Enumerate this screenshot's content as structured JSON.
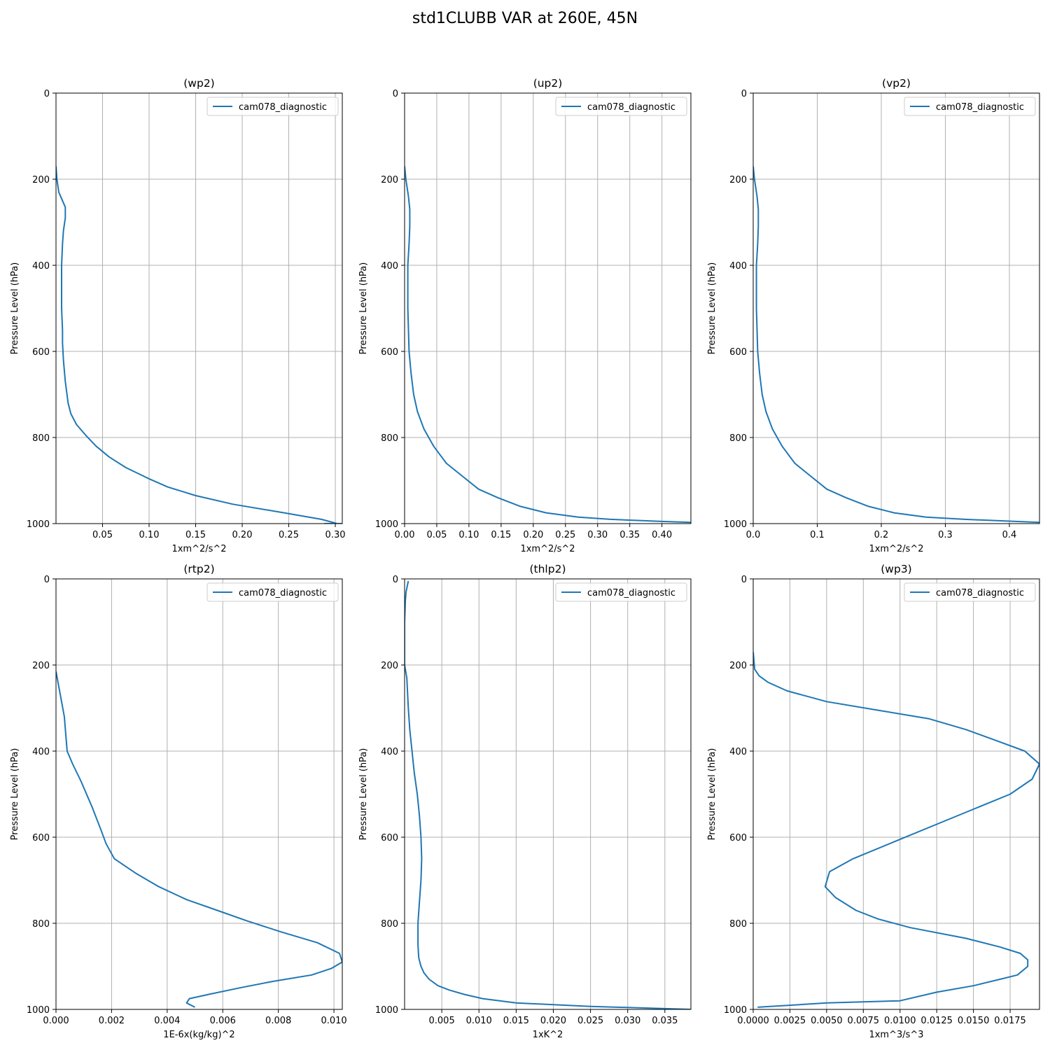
{
  "figure": {
    "title": "std1CLUBB VAR at 260E, 45N",
    "line_color": "#1f77b4",
    "grid_color": "#b0b0b0"
  },
  "chart_data": [
    {
      "type": "line",
      "title": "(wp2)",
      "xlabel": "1xm^2/s^2",
      "ylabel": "Pressure Level (hPa)",
      "xlim": [
        0.0,
        0.3075
      ],
      "ylim": [
        1000,
        0
      ],
      "xticks": [
        0.05,
        0.1,
        0.15,
        0.2,
        0.25,
        0.3
      ],
      "xtick_labels": [
        "0.05",
        "0.10",
        "0.15",
        "0.20",
        "0.25",
        "0.30"
      ],
      "yticks": [
        0,
        200,
        400,
        600,
        800,
        1000
      ],
      "ytick_labels": [
        "0",
        "200",
        "400",
        "600",
        "800",
        "1000"
      ],
      "grid": true,
      "legend": "top-right",
      "series": [
        {
          "name": "cam078_diagnostic",
          "x": [
            0.0,
            0.001,
            0.003,
            0.007,
            0.01,
            0.01,
            0.008,
            0.007,
            0.006,
            0.006,
            0.006,
            0.007,
            0.007,
            0.008,
            0.01,
            0.013,
            0.016,
            0.022,
            0.032,
            0.043,
            0.057,
            0.075,
            0.099,
            0.12,
            0.15,
            0.19,
            0.245,
            0.285,
            0.302,
            0.3075,
            0.288
          ],
          "y": [
            170,
            200,
            230,
            250,
            265,
            290,
            320,
            350,
            400,
            450,
            500,
            550,
            580,
            620,
            670,
            720,
            745,
            770,
            795,
            820,
            845,
            870,
            895,
            915,
            935,
            955,
            975,
            990,
            1000,
            1000,
            1000
          ]
        }
      ]
    },
    {
      "type": "line",
      "title": "(up2)",
      "xlabel": "1xm^2/s^2",
      "ylabel": "Pressure Level (hPa)",
      "xlim": [
        0.0,
        0.445
      ],
      "ylim": [
        1000,
        0
      ],
      "xticks": [
        0.0,
        0.05,
        0.1,
        0.15,
        0.2,
        0.25,
        0.3,
        0.35,
        0.4
      ],
      "xtick_labels": [
        "0.00",
        "0.05",
        "0.10",
        "0.15",
        "0.20",
        "0.25",
        "0.30",
        "0.35",
        "0.40"
      ],
      "yticks": [
        0,
        200,
        400,
        600,
        800,
        1000
      ],
      "ytick_labels": [
        "0",
        "200",
        "400",
        "600",
        "800",
        "1000"
      ],
      "grid": true,
      "legend": "top-right",
      "series": [
        {
          "name": "cam078_diagnostic",
          "x": [
            0.0,
            0.002,
            0.006,
            0.008,
            0.008,
            0.007,
            0.005,
            0.005,
            0.005,
            0.006,
            0.007,
            0.01,
            0.014,
            0.02,
            0.03,
            0.045,
            0.065,
            0.09,
            0.115,
            0.145,
            0.18,
            0.22,
            0.27,
            0.32,
            0.4,
            0.445
          ],
          "y": [
            170,
            200,
            240,
            270,
            310,
            350,
            400,
            450,
            500,
            550,
            600,
            650,
            700,
            740,
            780,
            820,
            860,
            890,
            920,
            940,
            960,
            975,
            985,
            990,
            995,
            997
          ]
        }
      ]
    },
    {
      "type": "line",
      "title": "(vp2)",
      "xlabel": "1xm^2/s^2",
      "ylabel": "Pressure Level (hPa)",
      "xlim": [
        0.0,
        0.447
      ],
      "ylim": [
        1000,
        0
      ],
      "xticks": [
        0.0,
        0.1,
        0.2,
        0.3,
        0.4
      ],
      "xtick_labels": [
        "0.0",
        "0.1",
        "0.2",
        "0.3",
        "0.4"
      ],
      "yticks": [
        0,
        200,
        400,
        600,
        800,
        1000
      ],
      "ytick_labels": [
        "0",
        "200",
        "400",
        "600",
        "800",
        "1000"
      ],
      "grid": true,
      "legend": "top-right",
      "series": [
        {
          "name": "cam078_diagnostic",
          "x": [
            0.0,
            0.002,
            0.006,
            0.008,
            0.008,
            0.007,
            0.005,
            0.005,
            0.005,
            0.006,
            0.007,
            0.01,
            0.014,
            0.02,
            0.03,
            0.045,
            0.065,
            0.09,
            0.115,
            0.145,
            0.18,
            0.22,
            0.27,
            0.33,
            0.41,
            0.447
          ],
          "y": [
            170,
            200,
            240,
            270,
            310,
            350,
            400,
            450,
            500,
            550,
            600,
            650,
            700,
            740,
            780,
            820,
            860,
            890,
            920,
            940,
            960,
            975,
            985,
            990,
            995,
            997
          ]
        }
      ]
    },
    {
      "type": "line",
      "title": "(rtp2)",
      "xlabel": "1E-6x(kg/kg)^2",
      "ylabel": "Pressure Level (hPa)",
      "xlim": [
        0.0,
        0.0103
      ],
      "ylim": [
        1000,
        0
      ],
      "xticks": [
        0.0,
        0.002,
        0.004,
        0.006,
        0.008,
        0.01
      ],
      "xtick_labels": [
        "0.000",
        "0.002",
        "0.004",
        "0.006",
        "0.008",
        "0.010"
      ],
      "yticks": [
        0,
        200,
        400,
        600,
        800,
        1000
      ],
      "ytick_labels": [
        "0",
        "200",
        "400",
        "600",
        "800",
        "1000"
      ],
      "grid": true,
      "legend": "top-right",
      "series": [
        {
          "name": "cam078_diagnostic",
          "x": [
            0.0,
            0.0001,
            0.0003,
            0.0004,
            0.0006,
            0.0009,
            0.0013,
            0.0016,
            0.0018,
            0.0021,
            0.0029,
            0.0037,
            0.0047,
            0.0058,
            0.0069,
            0.0081,
            0.0094,
            0.0102,
            0.0103,
            0.0099,
            0.0092,
            0.0078,
            0.0066,
            0.0055,
            0.0048,
            0.0047,
            0.005
          ],
          "y": [
            215,
            250,
            320,
            400,
            430,
            470,
            530,
            580,
            615,
            650,
            685,
            715,
            745,
            770,
            795,
            820,
            845,
            870,
            890,
            905,
            920,
            935,
            950,
            965,
            975,
            985,
            995
          ]
        }
      ]
    },
    {
      "type": "line",
      "title": "(thlp2)",
      "xlabel": "1xK^2",
      "ylabel": "Pressure Level (hPa)",
      "xlim": [
        0.0,
        0.0385
      ],
      "ylim": [
        1000,
        0
      ],
      "xticks": [
        0.005,
        0.01,
        0.015,
        0.02,
        0.025,
        0.03,
        0.035
      ],
      "xtick_labels": [
        "0.005",
        "0.010",
        "0.015",
        "0.020",
        "0.025",
        "0.030",
        "0.035"
      ],
      "yticks": [
        0,
        200,
        400,
        600,
        800,
        1000
      ],
      "ytick_labels": [
        "0",
        "200",
        "400",
        "600",
        "800",
        "1000"
      ],
      "grid": true,
      "legend": "top-right",
      "series": [
        {
          "name": "cam078_diagnostic",
          "x": [
            0.0005,
            0.0002,
            0.0001,
            0.0,
            0.0,
            0.0,
            0.0003,
            0.0005,
            0.0007,
            0.001,
            0.0013,
            0.0017,
            0.002,
            0.0022,
            0.0023,
            0.0022,
            0.002,
            0.0018,
            0.0018,
            0.0019,
            0.0022,
            0.0026,
            0.0033,
            0.0045,
            0.006,
            0.008,
            0.0105,
            0.015,
            0.025,
            0.0385
          ],
          "y": [
            5,
            30,
            50,
            100,
            150,
            200,
            230,
            300,
            350,
            400,
            450,
            500,
            550,
            600,
            650,
            700,
            750,
            800,
            850,
            880,
            900,
            915,
            930,
            945,
            955,
            965,
            975,
            985,
            993,
            1000
          ]
        }
      ]
    },
    {
      "type": "line",
      "title": "(wp3)",
      "xlabel": "1xm^3/s^3",
      "ylabel": "Pressure Level (hPa)",
      "xlim": [
        0.0,
        0.0195
      ],
      "ylim": [
        1000,
        0
      ],
      "xticks": [
        0.0,
        0.0025,
        0.005,
        0.0075,
        0.01,
        0.0125,
        0.015,
        0.0175
      ],
      "xtick_labels": [
        "0.0000",
        "0.0025",
        "0.0050",
        "0.0075",
        "0.0100",
        "0.0125",
        "0.0150",
        "0.0175"
      ],
      "yticks": [
        0,
        200,
        400,
        600,
        800,
        1000
      ],
      "ytick_labels": [
        "0",
        "200",
        "400",
        "600",
        "800",
        "1000"
      ],
      "grid": true,
      "legend": "top-right",
      "series": [
        {
          "name": "cam078_diagnostic",
          "x": [
            0.0,
            0.0001,
            0.0004,
            0.001,
            0.0023,
            0.005,
            0.0085,
            0.012,
            0.0145,
            0.0165,
            0.0185,
            0.0195,
            0.019,
            0.0175,
            0.015,
            0.0125,
            0.01,
            0.0068,
            0.0052,
            0.0049,
            0.0056,
            0.007,
            0.0085,
            0.0107,
            0.0145,
            0.0168,
            0.0182,
            0.0187,
            0.0187,
            0.018,
            0.0168,
            0.015,
            0.0125,
            0.01,
            0.005,
            0.0003
          ],
          "y": [
            170,
            210,
            225,
            240,
            260,
            285,
            305,
            325,
            350,
            375,
            400,
            430,
            465,
            500,
            535,
            570,
            605,
            650,
            680,
            715,
            740,
            770,
            790,
            810,
            835,
            855,
            870,
            885,
            900,
            920,
            930,
            945,
            960,
            980,
            985,
            995
          ]
        }
      ]
    }
  ]
}
